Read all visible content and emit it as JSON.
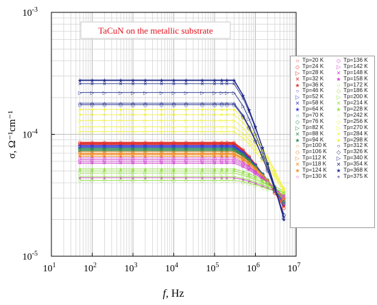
{
  "chart_data": {
    "type": "line",
    "annotation": "TaCuN on the metallic substrate",
    "xlabel_italic": "f",
    "xlabel_rest": ", Hz",
    "ylabel": "σ, Ω⁻¹cm⁻¹",
    "x_scale": "log",
    "y_scale": "log",
    "xlim": [
      10,
      10000000
    ],
    "ylim": [
      1e-05,
      0.001
    ],
    "grid": true,
    "legend_placement": "right",
    "x_ticks": [
      {
        "value": 10,
        "base": "10",
        "exp": "1"
      },
      {
        "value": 100,
        "base": "10",
        "exp": "2"
      },
      {
        "value": 1000,
        "base": "10",
        "exp": "3"
      },
      {
        "value": 10000,
        "base": "10",
        "exp": "4"
      },
      {
        "value": 100000,
        "base": "10",
        "exp": "5"
      },
      {
        "value": 1000000,
        "base": "10",
        "exp": "6"
      },
      {
        "value": 10000000,
        "base": "10",
        "exp": "7"
      }
    ],
    "y_ticks": [
      {
        "value": 1e-05,
        "base": "10",
        "exp": "-5"
      },
      {
        "value": 0.0001,
        "base": "10",
        "exp": "-4"
      },
      {
        "value": 0.001,
        "base": "10",
        "exp": "-3"
      }
    ],
    "x": [
      50,
      100,
      200,
      500,
      1000,
      2000,
      5000,
      10000,
      20000,
      50000,
      100000,
      150000,
      200000,
      300000,
      500000,
      700000,
      1000000,
      1500000,
      2000000,
      3000000,
      5000000
    ],
    "series": [
      {
        "name": "Tp=20 K",
        "marker": "○",
        "color": "#e0302a",
        "plateau": 8.6e-05,
        "end": 2.5e-05
      },
      {
        "name": "Tp=24 K",
        "marker": "◇",
        "color": "#e0302a",
        "plateau": 8.5e-05,
        "end": 2.5e-05
      },
      {
        "name": "Tp=28 K",
        "marker": "▷",
        "color": "#e0302a",
        "plateau": 8.4e-05,
        "end": 2.6e-05
      },
      {
        "name": "Tp=32 K",
        "marker": "✕",
        "color": "#e0302a",
        "plateau": 8.3e-05,
        "end": 2.6e-05
      },
      {
        "name": "Tp=36 K",
        "marker": "★",
        "color": "#e0302a",
        "plateau": 8.2e-05,
        "end": 2.6e-05
      },
      {
        "name": "Tp=46 K",
        "marker": "○",
        "color": "#3a3adf",
        "plateau": 8.1e-05,
        "end": 2.7e-05
      },
      {
        "name": "Tp=52 K",
        "marker": "▷",
        "color": "#3a3adf",
        "plateau": 8e-05,
        "end": 2.7e-05
      },
      {
        "name": "Tp=58 K",
        "marker": "✕",
        "color": "#3a3adf",
        "plateau": 7.9e-05,
        "end": 2.7e-05
      },
      {
        "name": "Tp=64 K",
        "marker": "★",
        "color": "#3a3adf",
        "plateau": 7.8e-05,
        "end": 2.8e-05
      },
      {
        "name": "Tp=70 K",
        "marker": "○",
        "color": "#2e8b57",
        "plateau": 7.7e-05,
        "end": 2.8e-05
      },
      {
        "name": "Tp=76 K",
        "marker": "◇",
        "color": "#2e8b57",
        "plateau": 7.6e-05,
        "end": 2.8e-05
      },
      {
        "name": "Tp=82 K",
        "marker": "▷",
        "color": "#2e8b57",
        "plateau": 7.5e-05,
        "end": 2.8e-05
      },
      {
        "name": "Tp=88 K",
        "marker": "✕",
        "color": "#2e8b57",
        "plateau": 7.4e-05,
        "end": 2.9e-05
      },
      {
        "name": "Tp=94 K",
        "marker": "★",
        "color": "#2e8b57",
        "plateau": 7.3e-05,
        "end": 2.9e-05
      },
      {
        "name": "Tp=100 K",
        "marker": "○",
        "color": "#f08c28",
        "plateau": 7.2e-05,
        "end": 2.9e-05
      },
      {
        "name": "Tp=106 K",
        "marker": "◇",
        "color": "#f08c28",
        "plateau": 7e-05,
        "end": 2.9e-05
      },
      {
        "name": "Tp=112 K",
        "marker": "▷",
        "color": "#f08c28",
        "plateau": 6.9e-05,
        "end": 3e-05
      },
      {
        "name": "Tp=118 K",
        "marker": "✕",
        "color": "#f08c28",
        "plateau": 6.8e-05,
        "end": 3e-05
      },
      {
        "name": "Tp=124 K",
        "marker": "★",
        "color": "#f08c28",
        "plateau": 6.6e-05,
        "end": 3e-05
      },
      {
        "name": "Tp=130 K",
        "marker": "○",
        "color": "#d040d0",
        "plateau": 6.4e-05,
        "end": 3e-05
      },
      {
        "name": "Tp=136 K",
        "marker": "◇",
        "color": "#d040d0",
        "plateau": 6.2e-05,
        "end": 3.1e-05
      },
      {
        "name": "Tp=142 K",
        "marker": "▷",
        "color": "#d040d0",
        "plateau": 6e-05,
        "end": 3.1e-05
      },
      {
        "name": "Tp=148 K",
        "marker": "✕",
        "color": "#d040d0",
        "plateau": 5.8e-05,
        "end": 3.1e-05
      },
      {
        "name": "Tp=158 K",
        "marker": "★",
        "color": "#d040d0",
        "plateau": 4.4e-05,
        "end": 3.2e-05
      },
      {
        "name": "Tp=172 K",
        "marker": "○",
        "color": "#90e040",
        "plateau": 4.2e-05,
        "end": 3.2e-05
      },
      {
        "name": "Tp=186 K",
        "marker": "◇",
        "color": "#90e040",
        "plateau": 4.5e-05,
        "end": 3.3e-05
      },
      {
        "name": "Tp=200 K",
        "marker": "▷",
        "color": "#90e040",
        "plateau": 4.8e-05,
        "end": 3.3e-05
      },
      {
        "name": "Tp=214 K",
        "marker": "✕",
        "color": "#90e040",
        "plateau": 5e-05,
        "end": 3.3e-05
      },
      {
        "name": "Tp=228 K",
        "marker": "★",
        "color": "#90e040",
        "plateau": 5.2e-05,
        "end": 3.4e-05
      },
      {
        "name": "Tp=242 K",
        "marker": "○",
        "color": "#f2f23a",
        "plateau": 0.000105,
        "end": 3.4e-05
      },
      {
        "name": "Tp=256 K",
        "marker": "◇",
        "color": "#f2f23a",
        "plateau": 0.000115,
        "end": 3.5e-05
      },
      {
        "name": "Tp=270 K",
        "marker": "▷",
        "color": "#f2f23a",
        "plateau": 0.00013,
        "end": 3.5e-05
      },
      {
        "name": "Tp=284 K",
        "marker": "✕",
        "color": "#f2f23a",
        "plateau": 0.000145,
        "end": 3.6e-05
      },
      {
        "name": "Tp=298 K",
        "marker": "★",
        "color": "#f2f23a",
        "plateau": 0.00016,
        "end": 3.6e-05
      },
      {
        "name": "Tp=312 K",
        "marker": "○",
        "color": "#1e2a8a",
        "plateau": 0.000175,
        "end": 2.2e-05
      },
      {
        "name": "Tp=326 K",
        "marker": "◇",
        "color": "#1e2a8a",
        "plateau": 0.00018,
        "end": 2.2e-05
      },
      {
        "name": "Tp=340 K",
        "marker": "▷",
        "color": "#1e2a8a",
        "plateau": 0.00022,
        "end": 2.1e-05
      },
      {
        "name": "Tp=354 K",
        "marker": "✕",
        "color": "#1e2a8a",
        "plateau": 0.00026,
        "end": 2.1e-05
      },
      {
        "name": "Tp=368 K",
        "marker": "★",
        "color": "#1e2a8a",
        "plateau": 0.000275,
        "end": 2e-05
      },
      {
        "name": "Tp=375 K",
        "marker": "+",
        "color": "#1e2a8a",
        "plateau": 0.00028,
        "end": 2e-05
      }
    ]
  }
}
